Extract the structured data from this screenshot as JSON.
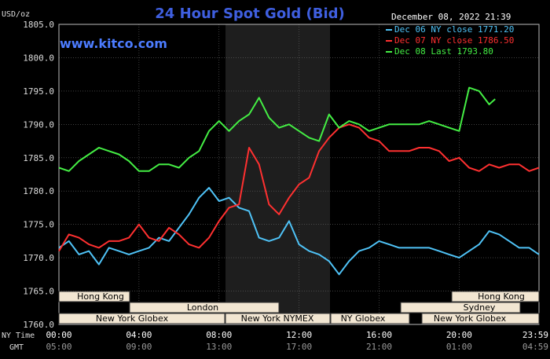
{
  "chart_data": {
    "type": "line",
    "title": "24 Hour Spot Gold (Bid)",
    "ylabel": "USD/oz",
    "timestamp": "December 08, 2022 21:39",
    "watermark": "www.kitco.com",
    "ylim": [
      1760,
      1805
    ],
    "yticks": [
      "1805.0",
      "1800.0",
      "1795.0",
      "1790.0",
      "1785.0",
      "1780.0",
      "1775.0",
      "1770.0",
      "1765.0",
      "1760.0"
    ],
    "xticks_ny": [
      "00:00",
      "04:00",
      "08:00",
      "12:00",
      "16:00",
      "20:00",
      "23:59"
    ],
    "xticks_gmt": [
      "05:00",
      "09:00",
      "13:00",
      "17:00",
      "21:00",
      "01:00",
      "04:59"
    ],
    "row_label_ny": "NY Time",
    "row_label_gmt": "GMT",
    "grid": true,
    "sessions": {
      "hong_kong_left": "Hong Kong",
      "london": "London",
      "ny_globex_left": "New York Globex",
      "ny_nymex": "New York NYMEX",
      "ny_globex_mid": "NY Globex",
      "sydney": "Sydney",
      "hong_kong_right": "Hong Kong",
      "ny_globex_right": "New York Globex"
    },
    "legend": [
      "Dec 06 NY close 1771.20",
      "Dec 07 NY close 1786.50",
      "Dec 08 Last 1793.80"
    ],
    "series": [
      {
        "name": "Dec 06",
        "color": "#4fc3f7",
        "x": [
          0,
          0.5,
          1,
          1.5,
          2,
          2.5,
          3,
          3.5,
          4,
          4.5,
          5,
          5.5,
          6,
          6.5,
          7,
          7.5,
          8,
          8.5,
          9,
          9.5,
          10,
          10.5,
          11,
          11.5,
          12,
          12.5,
          13,
          13.5,
          14,
          14.5,
          15,
          15.5,
          16,
          16.5,
          17,
          17.5,
          18,
          18.5,
          19,
          19.5,
          20,
          20.5,
          21,
          21.5,
          22,
          22.5,
          23,
          23.5,
          23.99
        ],
        "values": [
          1771.5,
          1772.5,
          1770.5,
          1771.0,
          1769.0,
          1771.5,
          1771.0,
          1770.5,
          1771.0,
          1771.5,
          1773.0,
          1772.5,
          1774.5,
          1776.5,
          1779.0,
          1780.5,
          1778.5,
          1779.0,
          1777.5,
          1777.0,
          1773.0,
          1772.5,
          1773.0,
          1775.5,
          1772.0,
          1771.0,
          1770.5,
          1769.5,
          1767.5,
          1769.5,
          1771.0,
          1771.5,
          1772.5,
          1772.0,
          1771.5,
          1771.5,
          1771.5,
          1771.5,
          1771.0,
          1770.5,
          1770.0,
          1771.0,
          1772.0,
          1774.0,
          1773.5,
          1772.5,
          1771.5,
          1771.5,
          1770.5
        ]
      },
      {
        "name": "Dec 07",
        "color": "#ff3030",
        "x": [
          0,
          0.5,
          1,
          1.5,
          2,
          2.5,
          3,
          3.5,
          4,
          4.5,
          5,
          5.5,
          6,
          6.5,
          7,
          7.5,
          8,
          8.5,
          9,
          9.5,
          10,
          10.5,
          11,
          11.5,
          12,
          12.5,
          13,
          13.5,
          14,
          14.5,
          15,
          15.5,
          16,
          16.5,
          17,
          17.5,
          18,
          18.5,
          19,
          19.5,
          20,
          20.5,
          21,
          21.5,
          22,
          22.5,
          23,
          23.5,
          23.99
        ],
        "values": [
          1771.0,
          1773.5,
          1773.0,
          1772.0,
          1771.5,
          1772.5,
          1772.5,
          1773.0,
          1775.0,
          1773.0,
          1772.5,
          1774.5,
          1773.5,
          1772.0,
          1771.5,
          1773.0,
          1775.5,
          1777.5,
          1778.0,
          1786.5,
          1784.0,
          1778.0,
          1776.5,
          1779.0,
          1781.0,
          1782.0,
          1786.0,
          1788.0,
          1789.5,
          1790.0,
          1789.5,
          1788.0,
          1787.5,
          1786.0,
          1786.0,
          1786.0,
          1786.5,
          1786.5,
          1786.0,
          1784.5,
          1785.0,
          1783.5,
          1783.0,
          1784.0,
          1783.5,
          1784.0,
          1784.0,
          1783.0,
          1783.5
        ]
      },
      {
        "name": "Dec 08",
        "color": "#44ee44",
        "x": [
          0,
          0.5,
          1,
          1.5,
          2,
          2.5,
          3,
          3.5,
          4,
          4.5,
          5,
          5.5,
          6,
          6.5,
          7,
          7.5,
          8,
          8.5,
          9,
          9.5,
          10,
          10.5,
          11,
          11.5,
          12,
          12.5,
          13,
          13.5,
          14,
          14.5,
          15,
          15.5,
          16,
          16.5,
          17,
          17.5,
          18,
          18.5,
          19,
          19.5,
          20,
          20.5,
          21,
          21.5,
          21.8
        ],
        "values": [
          1783.5,
          1783.0,
          1784.5,
          1785.5,
          1786.5,
          1786.0,
          1785.5,
          1784.5,
          1783.0,
          1783.0,
          1784.0,
          1784.0,
          1783.5,
          1785.0,
          1786.0,
          1789.0,
          1790.5,
          1789.0,
          1790.5,
          1791.5,
          1794.0,
          1791.0,
          1789.5,
          1790.0,
          1789.0,
          1788.0,
          1787.5,
          1791.5,
          1789.5,
          1790.5,
          1790.0,
          1789.0,
          1789.5,
          1790.0,
          1790.0,
          1790.0,
          1790.0,
          1790.5,
          1790.0,
          1789.5,
          1789.0,
          1795.5,
          1795.0,
          1793.0,
          1793.8
        ]
      }
    ]
  }
}
